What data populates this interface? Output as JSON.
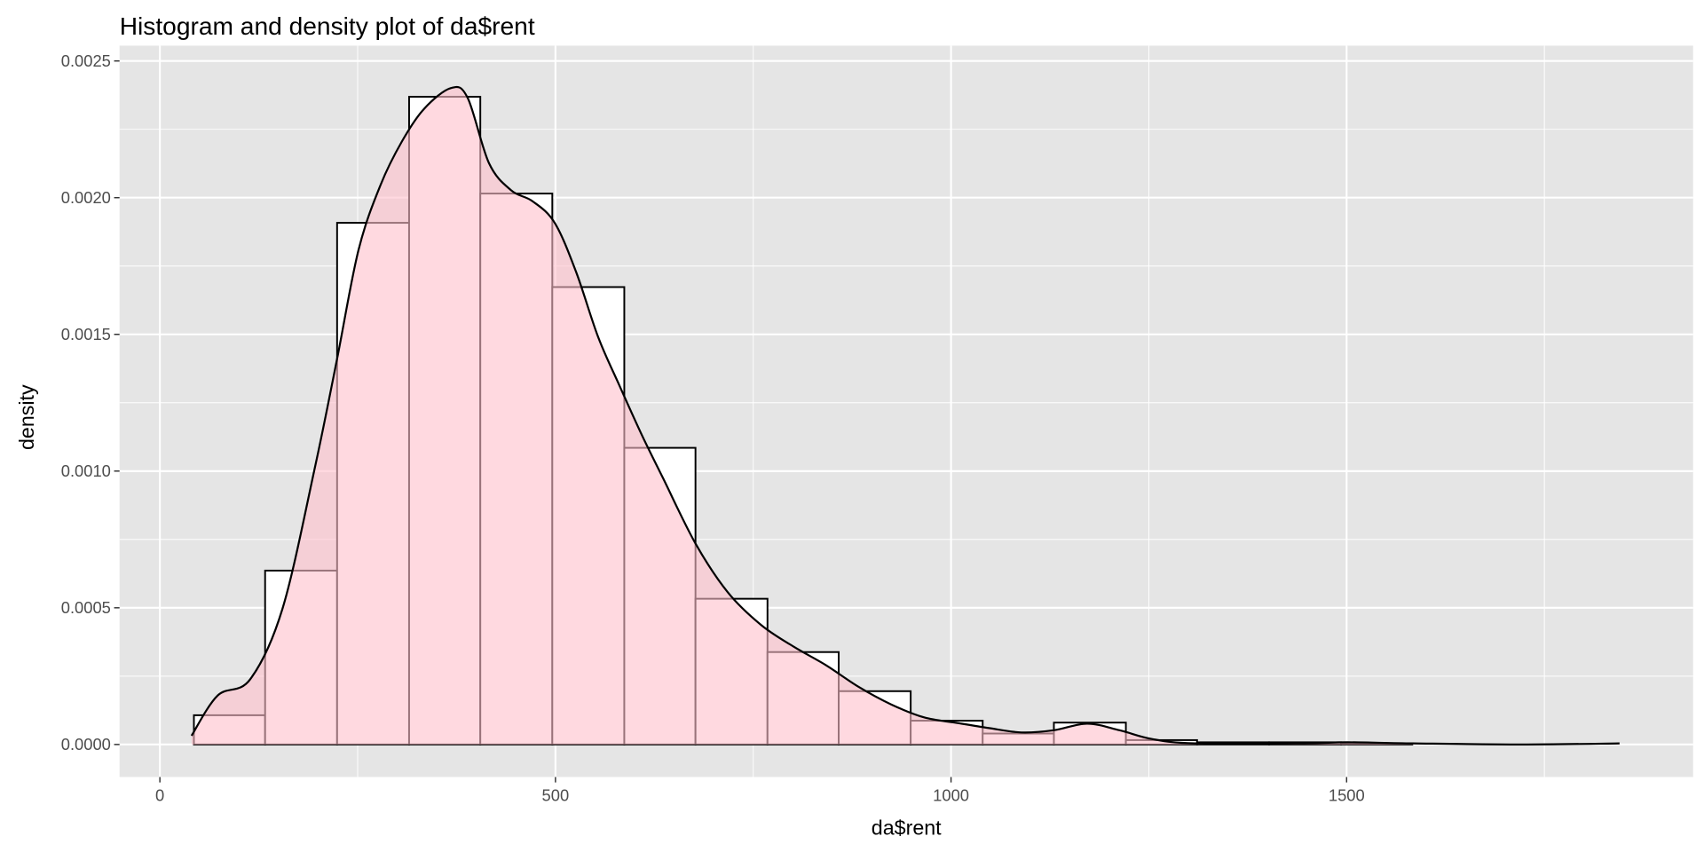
{
  "chart_data": {
    "type": "bar",
    "title": "Histogram and density plot of da$rent",
    "xlabel": "da$rent",
    "ylabel": "density",
    "xlim": [
      -51,
      1938
    ],
    "ylim": [
      -0.000119,
      0.002556
    ],
    "grid": true,
    "x_ticks": [
      0,
      500,
      1000,
      1500
    ],
    "x_tick_labels": [
      "0",
      "500",
      "1000",
      "1500"
    ],
    "y_ticks": [
      0,
      0.0005,
      0.001,
      0.0015,
      0.002,
      0.0025
    ],
    "y_tick_labels": [
      "0.0000",
      "0.0005",
      "0.0010",
      "0.0015",
      "0.0020",
      "0.0025"
    ],
    "histogram": {
      "bin_edges": [
        43,
        133,
        224,
        315,
        405,
        496,
        587,
        677,
        768,
        858,
        949,
        1040,
        1130,
        1221,
        1311,
        1402,
        1493,
        1583
      ],
      "values": [
        0.000107,
        0.000636,
        0.001908,
        0.002369,
        0.002015,
        0.001673,
        0.001085,
        0.000533,
        0.000338,
        0.000195,
        8.7e-05,
        4e-05,
        8e-05,
        1.6e-05,
        8e-06,
        8e-06,
        4e-06
      ],
      "fill": "#ffffff",
      "outline": "#000000"
    },
    "density": {
      "x": [
        40,
        73,
        114,
        155,
        196,
        224,
        251,
        279,
        306,
        334,
        368,
        389,
        416,
        444,
        471,
        499,
        526,
        554,
        581,
        609,
        636,
        677,
        718,
        760,
        801,
        842,
        883,
        924,
        966,
        1007,
        1048,
        1089,
        1130,
        1172,
        1213,
        1254,
        1309,
        1446,
        1501,
        1584,
        1721,
        1845
      ],
      "y": [
        3.2e-05,
        0.000179,
        0.000238,
        0.000497,
        0.001014,
        0.001411,
        0.001808,
        0.002047,
        0.002206,
        0.002325,
        0.002401,
        0.002365,
        0.002126,
        0.002027,
        0.001987,
        0.001908,
        0.001729,
        0.00149,
        0.001312,
        0.001133,
        0.000974,
        0.000735,
        0.000556,
        0.000437,
        0.000358,
        0.00029,
        0.000211,
        0.000147,
        9.9e-05,
        7.9e-05,
        6e-05,
        4.4e-05,
        5.2e-05,
        7.6e-05,
        5.2e-05,
        2e-05,
        4e-06,
        4e-06,
        8e-06,
        4e-06,
        0,
        4e-06
      ],
      "fill": "#FFC0CB",
      "fill_opacity": 0.6,
      "line": "#000000"
    },
    "panel_background": "#e5e5e5",
    "grid_color": "#ffffff"
  }
}
